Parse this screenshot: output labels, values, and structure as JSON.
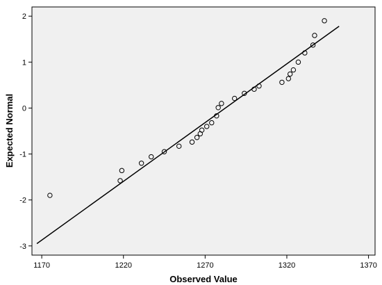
{
  "chart_data": {
    "type": "scatter",
    "title": "",
    "xlabel": "Observed Value",
    "ylabel": "Expected Normal",
    "xlim": [
      1164,
      1374
    ],
    "ylim": [
      -3.2,
      2.2
    ],
    "xticks": [
      1170,
      1220,
      1270,
      1320,
      1370
    ],
    "xtick_labels": [
      "1170",
      "1220",
      "1270",
      "1320",
      "1370"
    ],
    "yticks": [
      -3,
      -2,
      -1,
      0,
      1,
      2
    ],
    "ytick_labels": [
      "-3",
      "-2",
      "-1",
      "0",
      "1",
      "2"
    ],
    "grid": false,
    "plot_background": "#f0f0f0",
    "points": [
      {
        "x": 1175,
        "y": -1.9
      },
      {
        "x": 1218,
        "y": -1.58
      },
      {
        "x": 1219,
        "y": -1.36
      },
      {
        "x": 1231,
        "y": -1.2
      },
      {
        "x": 1237,
        "y": -1.06
      },
      {
        "x": 1245,
        "y": -0.95
      },
      {
        "x": 1254,
        "y": -0.83
      },
      {
        "x": 1262,
        "y": -0.74
      },
      {
        "x": 1265,
        "y": -0.64
      },
      {
        "x": 1267,
        "y": -0.56
      },
      {
        "x": 1268,
        "y": -0.48
      },
      {
        "x": 1271,
        "y": -0.4
      },
      {
        "x": 1274,
        "y": -0.32
      },
      {
        "x": 1277,
        "y": -0.17
      },
      {
        "x": 1278,
        "y": 0.01
      },
      {
        "x": 1280,
        "y": 0.1
      },
      {
        "x": 1288,
        "y": 0.21
      },
      {
        "x": 1294,
        "y": 0.32
      },
      {
        "x": 1300,
        "y": 0.41
      },
      {
        "x": 1303,
        "y": 0.48
      },
      {
        "x": 1317,
        "y": 0.56
      },
      {
        "x": 1321,
        "y": 0.64
      },
      {
        "x": 1322,
        "y": 0.74
      },
      {
        "x": 1324,
        "y": 0.83
      },
      {
        "x": 1327,
        "y": 1.0
      },
      {
        "x": 1331,
        "y": 1.2
      },
      {
        "x": 1336,
        "y": 1.37
      },
      {
        "x": 1337,
        "y": 1.58
      },
      {
        "x": 1343,
        "y": 1.9
      }
    ],
    "reference_line": {
      "x": [
        1167,
        1352
      ],
      "y": [
        -2.95,
        1.78
      ]
    }
  }
}
